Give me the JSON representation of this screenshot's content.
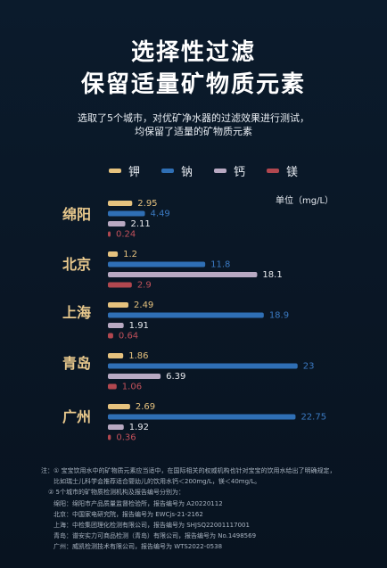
{
  "title_line1": "选择性过滤",
  "title_line2": "保留适量矿物质元素",
  "subtitle_line1": "选取了5个城市，对优矿净水器的过滤效果进行测试，",
  "subtitle_line2": "均保留了适量的矿物质元素",
  "unit_label": "单位（mg/L）",
  "colors": {
    "钾": "#e6c27e",
    "钠": "#2f6fb5",
    "钙": "#b8a9c2",
    "镁": "#b1474f"
  },
  "chart_data": {
    "type": "bar",
    "orientation": "horizontal",
    "categories": [
      "绵阳",
      "北京",
      "上海",
      "青岛",
      "广州"
    ],
    "series": [
      {
        "name": "钾",
        "values": [
          2.95,
          1.2,
          2.49,
          1.86,
          2.69
        ]
      },
      {
        "name": "钠",
        "values": [
          4.49,
          11.8,
          18.9,
          23,
          22.75
        ]
      },
      {
        "name": "钙",
        "values": [
          2.11,
          18.1,
          1.91,
          6.39,
          1.92
        ]
      },
      {
        "name": "镁",
        "values": [
          0.24,
          2.9,
          0.64,
          1.06,
          0.36
        ]
      }
    ],
    "value_labels": [
      [
        "2.95",
        "4.49",
        "2.11",
        "0.24"
      ],
      [
        "1.2",
        "11.8",
        "18.1",
        "2.9"
      ],
      [
        "2.49",
        "18.9",
        "1.91",
        "0.64"
      ],
      [
        "1.86",
        "23",
        "6.39",
        "1.06"
      ],
      [
        "2.69",
        "22.75",
        "1.92",
        "0.36"
      ]
    ],
    "legend_position": "top",
    "grid": false
  },
  "notes": [
    "注：① 宝宝饮用水中的矿物质元素应当适中，在国际相关的权威机构也针对宝宝的饮用水给出了明确规定，",
    "比如瑞士儿科学会推荐适合婴幼儿的饮用水钙＜200mg/L，镁＜40mg/L。",
    "② 5个城市的矿物质检测机构及报告编号分别为：",
    "绵阳：绵阳市产品质量监督检验所，报告编号为 A20220112",
    "北京：中国家电研究院，报告编号为 EWCjs-21-2162",
    "上海：中检集团理化检测有限公司，报告编号为 SHJSQ22001117001",
    "青岛：谱安实力可商品检测（青岛）有限公司，报告编号为 No.1498569",
    "广州：威凯检测技术有限公司，报告编号为 WTS2022-0538"
  ]
}
